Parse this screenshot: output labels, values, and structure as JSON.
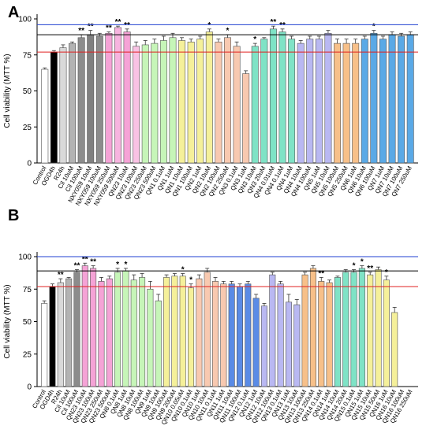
{
  "figure": {
    "reference_line_colors": {
      "top": "#1f3fd1",
      "middle": "#000000",
      "bottom": "#e02020"
    }
  },
  "chart_data": [
    {
      "panel_label": "A",
      "type": "bar",
      "ylabel": "Cell viability (MTT %)",
      "xlabel": "",
      "ylim": [
        0,
        100
      ],
      "yticks": [
        0,
        25,
        50,
        75,
        100
      ],
      "reference_lines": [
        96,
        89,
        77
      ],
      "categories": [
        "Control",
        "OGD4h",
        "R24h",
        "Cil 10uM",
        "Cil 100uM",
        "NXY059 10uM",
        "NXY059 100uM",
        "NXY059 250uM",
        "NXY059 500uM",
        "QN23 10uM",
        "QN23 100uM",
        "QN23 250uM",
        "QN23 500uM",
        "QN1 0.1uM",
        "QN1 1uM",
        "QN1 10uM",
        "QN1 100uM",
        "QN2 1uM",
        "QN2 10uM",
        "QN2 100uM",
        "QN2 250uM",
        "QN3 0.1uM",
        "QN3 1uM",
        "QN3 10uM",
        "QN3 20uM",
        "QN4 0.01uM",
        "QN4 0.1uM",
        "QN4 1uM",
        "QN4 10uM",
        "QN4 100uM",
        "QN5 1uM",
        "QN5 10uM",
        "QN5 100uM",
        "QN5 250uM",
        "QN6 1uM",
        "QN6 10uM",
        "QN6 100uM",
        "QN7 1uM",
        "QN7 10uM",
        "QN7 100uM",
        "QN7 250uM"
      ],
      "values": [
        65,
        77,
        80,
        83,
        87,
        89,
        88,
        90,
        94,
        91,
        81,
        82,
        83,
        85,
        87,
        85,
        84,
        86,
        91,
        84,
        87,
        81,
        62,
        81,
        86,
        93,
        91,
        86,
        83,
        86,
        86,
        90,
        83,
        83,
        83,
        86,
        90,
        86,
        89,
        88,
        89
      ],
      "errors": [
        1,
        1,
        2,
        1,
        2,
        3,
        2,
        1,
        1,
        2,
        3,
        3,
        3,
        3,
        3,
        2,
        2,
        2,
        2,
        2,
        2,
        3,
        2,
        2,
        1,
        2,
        2,
        2,
        2,
        2,
        2,
        2,
        3,
        3,
        3,
        2,
        2,
        2,
        2,
        2,
        2
      ],
      "significance": [
        "",
        "",
        "",
        "",
        "**",
        "**",
        "",
        "**",
        "**",
        "**",
        "",
        "",
        "",
        "",
        "",
        "",
        "",
        "",
        "*",
        "",
        "*",
        "",
        "",
        "*",
        "",
        "**",
        "**",
        "",
        "",
        "",
        "",
        "",
        "",
        "",
        "",
        "",
        "*",
        "",
        "",
        "",
        ""
      ],
      "colors": [
        "#ffffff",
        "#000000",
        "#d9d9d9",
        "#b3b3b3",
        "#8c8c8c",
        "#808080",
        "#8c8c8c",
        "#f5a3d6",
        "#f7b4df",
        "#f5a3d6",
        "#f9c2e4",
        "#c6f5b8",
        "#c6f5b8",
        "#c6f5b8",
        "#c6f5b8",
        "#f5f09a",
        "#f5f09a",
        "#f5f09a",
        "#f5f09a",
        "#f8c9b0",
        "#f8c9b0",
        "#f8c9b0",
        "#f8c9b0",
        "#7fe3c6",
        "#7fe3c6",
        "#7fe3c6",
        "#7fe3c6",
        "#7fe3c6",
        "#b9b8f2",
        "#b9b8f2",
        "#b9b8f2",
        "#b9b8f2",
        "#f7c089",
        "#f7c089",
        "#f7c089",
        "#5aa9e6",
        "#5aa9e6",
        "#5aa9e6",
        "#5aa9e6",
        "#5aa9e6",
        "#5aa9e6"
      ]
    },
    {
      "panel_label": "B",
      "type": "bar",
      "ylabel": "Cell viability (MTT %)",
      "xlabel": "",
      "ylim": [
        0,
        100
      ],
      "yticks": [
        0,
        25,
        50,
        75,
        100
      ],
      "reference_lines": [
        100,
        89,
        77
      ],
      "categories": [
        "Control",
        "OGD4h",
        "R24h",
        "Cil 10uM",
        "Cil 100uM",
        "QN23 10uM",
        "QN23 100uM",
        "QN23 250uM",
        "QN23 500uM",
        "QN8 0.1uM",
        "QN8 1uM",
        "QN8 10uM",
        "QN8 100uM",
        "QN9 1uM",
        "QN9 10uM",
        "QN9 100uM",
        "QN9 200uM",
        "QN10 0.05uM",
        "QN10 0.1uM",
        "QN10 1uM",
        "QN10 10uM",
        "QN11 0.1uM",
        "QN11 1uM",
        "QN11 10uM",
        "QN11 100uM",
        "QN12 0.1uM",
        "QN12 1uM",
        "QN12 10uM",
        "QN12 100uM",
        "QN13 0.1uM",
        "QN13 1uM",
        "QN13 10uM",
        "QN13 100uM",
        "QN13 250uM",
        "QN14 0.1uM",
        "QN14 1uM",
        "QN14 10uM",
        "QN14 20uM",
        "QN15 0.1uM",
        "QN15 1uM",
        "QN15 10uM",
        "QN15 50uM",
        "QN16 1uM",
        "QN16 10uM",
        "QN16 100uM",
        "QN16 250uM"
      ],
      "values": [
        64,
        77,
        80,
        83,
        88,
        93,
        91,
        81,
        83,
        88,
        89,
        82,
        84,
        75,
        66,
        84,
        85,
        85,
        76,
        83,
        88,
        81,
        79,
        79,
        77,
        79,
        68,
        62,
        86,
        79,
        65,
        63,
        86,
        91,
        81,
        80,
        84,
        88,
        88,
        91,
        86,
        90,
        82,
        57,
        0,
        0
      ],
      "errors": [
        2,
        2,
        3,
        1,
        2,
        2,
        2,
        3,
        2,
        3,
        2,
        4,
        3,
        6,
        5,
        2,
        2,
        2,
        3,
        3,
        3,
        3,
        2,
        2,
        2,
        2,
        3,
        2,
        2,
        2,
        6,
        4,
        2,
        2,
        3,
        2,
        1,
        2,
        2,
        2,
        2,
        2,
        3,
        4,
        0,
        0
      ],
      "significance": [
        "",
        "",
        "**",
        "",
        "**",
        "**",
        "**",
        "",
        "",
        "*",
        "*",
        "",
        "",
        "",
        "",
        "",
        "",
        "*",
        "*",
        "",
        "",
        "",
        "",
        "",
        "",
        "",
        "",
        "",
        "",
        "",
        "",
        "",
        "",
        "",
        "**",
        "",
        "",
        "",
        "*",
        "*",
        "**",
        "",
        "*",
        "",
        "",
        ""
      ],
      "colors": [
        "#ffffff",
        "#000000",
        "#d9d9d9",
        "#b3b3b3",
        "#8c8c8c",
        "#f5a3d6",
        "#f5a3d6",
        "#f5a3d6",
        "#f5a3d6",
        "#c6f5b8",
        "#c6f5b8",
        "#c6f5b8",
        "#c6f5b8",
        "#c6f5b8",
        "#c6f5b8",
        "#f5f09a",
        "#f5f09a",
        "#f5f09a",
        "#f5f09a",
        "#f8c9b0",
        "#f8c9b0",
        "#f8c9b0",
        "#f8c9b0",
        "#5a8be6",
        "#5a8be6",
        "#5a8be6",
        "#5a8be6",
        "#b9b8f2",
        "#b9b8f2",
        "#b9b8f2",
        "#b9b8f2",
        "#b9b8f2",
        "#f7c089",
        "#f7c089",
        "#f7c089",
        "#f7c089",
        "#7fe3c6",
        "#7fe3c6",
        "#7fe3c6",
        "#7fe3c6",
        "#f5f09a",
        "#f5f09a",
        "#f5f09a",
        "#f5f09a",
        "#f5f09a",
        "#f5f09a"
      ]
    }
  ]
}
